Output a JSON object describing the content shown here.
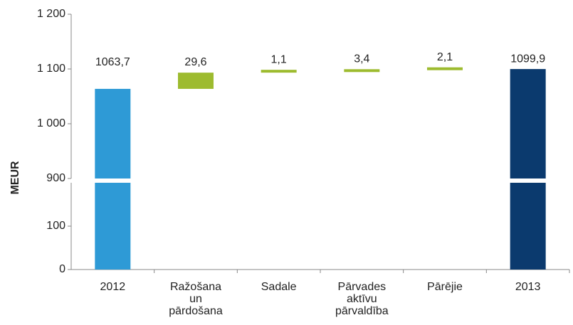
{
  "chart_data": {
    "type": "waterfall",
    "ylabel": "MEUR",
    "categories": [
      [
        "2012"
      ],
      [
        "Ražošana",
        "un",
        "pārdošana"
      ],
      [
        "Sadale"
      ],
      [
        "Pārvades",
        "aktīvu",
        "pārvaldība"
      ],
      [
        "Pārējie"
      ],
      [
        "2013"
      ]
    ],
    "values": [
      1063.7,
      29.6,
      1.1,
      3.4,
      2.1,
      1099.9
    ],
    "value_labels": [
      "1063,7",
      "29,6",
      "1,1",
      "3,4",
      "2,1",
      "1099,9"
    ],
    "kinds": [
      "total",
      "delta",
      "delta",
      "delta",
      "delta",
      "total"
    ],
    "colors": [
      "#2e9ad6",
      "#9dbb2f",
      "#9dbb2f",
      "#9dbb2f",
      "#9dbb2f",
      "#0b3a6e"
    ],
    "ylim_segments": [
      [
        0,
        200
      ],
      [
        900,
        1200
      ]
    ],
    "yticks": [
      0,
      100,
      900,
      {
        "value": 1000,
        "label": "1 000"
      },
      {
        "value": 1100,
        "label": "1 100"
      },
      {
        "value": 1200,
        "label": "1 200"
      }
    ]
  }
}
